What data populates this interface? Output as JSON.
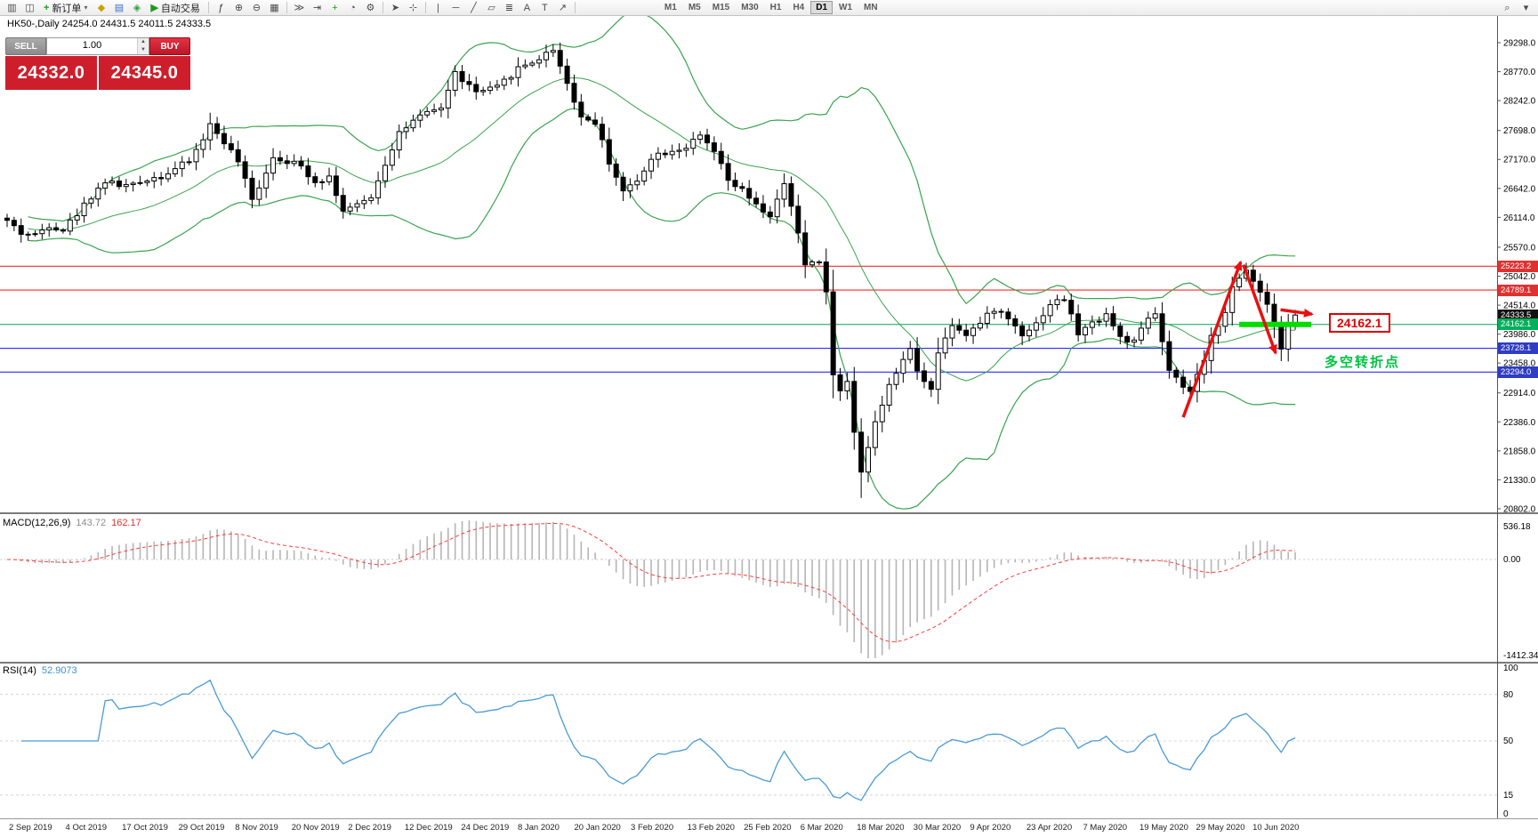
{
  "toolbar": {
    "items": [
      {
        "t": "icon",
        "name": "new-chart-icon",
        "g": "▥"
      },
      {
        "t": "icon",
        "name": "chart-windows-icon",
        "g": "◫"
      },
      {
        "t": "btn",
        "name": "new-order-button",
        "label": "新订单",
        "icon": "+",
        "icon_color": "#1a9c1a",
        "caret": true
      },
      {
        "t": "icon",
        "name": "metaeditor-icon",
        "g": "◆",
        "c": "#c9a302"
      },
      {
        "t": "icon",
        "name": "market-watch-icon",
        "g": "▤",
        "c": "#3b6fc4"
      },
      {
        "t": "icon",
        "name": "navigator-icon",
        "g": "◈",
        "c": "#2f9e44"
      },
      {
        "t": "btn",
        "name": "autotrade-button",
        "label": "自动交易",
        "icon": "▶",
        "icon_color": "#1a9c1a",
        "caret": false
      },
      {
        "t": "sep"
      },
      {
        "t": "icon",
        "name": "indicators-icon",
        "g": "ƒ",
        "c": "#333333"
      },
      {
        "t": "icon",
        "name": "zoom-in-icon",
        "g": "⊕"
      },
      {
        "t": "icon",
        "name": "zoom-out-icon",
        "g": "⊖"
      },
      {
        "t": "icon",
        "name": "tile-windows-icon",
        "g": "▦"
      },
      {
        "t": "sep"
      },
      {
        "t": "icon",
        "name": "auto-scroll-icon",
        "g": "≫"
      },
      {
        "t": "icon",
        "name": "chart-shift-icon",
        "g": "⇥"
      },
      {
        "t": "icon",
        "name": "new-object-icon",
        "g": "+",
        "c": "#1a9c1a"
      },
      {
        "t": "icon",
        "name": "period-dropdown-icon",
        "g": "◔"
      },
      {
        "t": "icon",
        "name": "templates-icon",
        "g": "⚙"
      },
      {
        "t": "sep"
      },
      {
        "t": "icon",
        "name": "cursor-icon",
        "g": "➤"
      },
      {
        "t": "icon",
        "name": "crosshair-icon",
        "g": "⊹"
      },
      {
        "t": "sep"
      },
      {
        "t": "icon",
        "name": "vertical-line-icon",
        "g": "|"
      },
      {
        "t": "icon",
        "name": "horizontal-line-icon",
        "g": "─"
      },
      {
        "t": "icon",
        "name": "trendline-icon",
        "g": "╱"
      },
      {
        "t": "icon",
        "name": "channel-icon",
        "g": "▱"
      },
      {
        "t": "icon",
        "name": "fibonacci-icon",
        "g": "≣"
      },
      {
        "t": "icon",
        "name": "text-icon",
        "g": "A"
      },
      {
        "t": "icon",
        "name": "label-icon",
        "g": "T"
      },
      {
        "t": "icon",
        "name": "arrows-icon",
        "g": "↗"
      },
      {
        "t": "sep"
      }
    ],
    "timeframes": [
      "M1",
      "M5",
      "M15",
      "M30",
      "H1",
      "H4",
      "D1",
      "W1",
      "MN"
    ],
    "active_timeframe": "D1",
    "right_icons": [
      {
        "name": "search-icon",
        "g": "⌕"
      },
      {
        "name": "objects-dropdown-icon",
        "g": "▾"
      }
    ]
  },
  "quote_panel": {
    "sell_label": "SELL",
    "buy_label": "BUY",
    "lot": "1.00",
    "sell_price": "24332.0",
    "buy_price": "24345.0"
  },
  "chart_data": {
    "type": "candlestick",
    "symbol_line": "HK50-,Daily  24254.0 24431.5 24011.5 24333.5",
    "price_axis": {
      "max": 29298.0,
      "min": 20802.0,
      "labels": [
        "29298.0",
        "28770.0",
        "28242.0",
        "27698.0",
        "27170.0",
        "26642.0",
        "26114.0",
        "25570.0",
        "25042.0",
        "24514.0",
        "23986.0",
        "23458.0",
        "22914.0",
        "22386.0",
        "21858.0",
        "21330.0",
        "20802.0"
      ]
    },
    "dates": [
      "2 Sep 2019",
      "4 Oct 2019",
      "17 Oct 2019",
      "29 Oct 2019",
      "8 Nov 2019",
      "20 Nov 2019",
      "2 Dec 2019",
      "12 Dec 2019",
      "24 Dec 2019",
      "8 Jan 2020",
      "20 Jan 2020",
      "3 Feb 2020",
      "13 Feb 2020",
      "25 Feb 2020",
      "6 Mar 2020",
      "18 Mar 2020",
      "30 Mar 2020",
      "9 Apr 2020",
      "23 Apr 2020",
      "7 May 2020",
      "19 May 2020",
      "29 May 2020",
      "10 Jun 2020"
    ],
    "bars": 185,
    "last_close": 24333.5,
    "close_anchors": [
      [
        0,
        26060
      ],
      [
        2,
        25830
      ],
      [
        4,
        25790
      ],
      [
        6,
        25980
      ],
      [
        8,
        25890
      ],
      [
        10,
        26180
      ],
      [
        12,
        26500
      ],
      [
        14,
        26775
      ],
      [
        16,
        26700
      ],
      [
        18,
        26690
      ],
      [
        20,
        26820
      ],
      [
        22,
        26865
      ],
      [
        24,
        27000
      ],
      [
        26,
        27135
      ],
      [
        28,
        27550
      ],
      [
        29,
        27800
      ],
      [
        31,
        27500
      ],
      [
        33,
        27130
      ],
      [
        35,
        26420
      ],
      [
        38,
        27220
      ],
      [
        40,
        27150
      ],
      [
        42,
        27040
      ],
      [
        44,
        26770
      ],
      [
        46,
        26860
      ],
      [
        48,
        26240
      ],
      [
        50,
        26320
      ],
      [
        52,
        26500
      ],
      [
        54,
        27100
      ],
      [
        56,
        27670
      ],
      [
        59,
        27940
      ],
      [
        62,
        28120
      ],
      [
        64,
        28745
      ],
      [
        67,
        28390
      ],
      [
        70,
        28475
      ],
      [
        73,
        28835
      ],
      [
        76,
        29010
      ],
      [
        78,
        29190
      ],
      [
        80,
        28565
      ],
      [
        82,
        27940
      ],
      [
        84,
        27850
      ],
      [
        86,
        27130
      ],
      [
        88,
        26590
      ],
      [
        90,
        26770
      ],
      [
        92,
        27220
      ],
      [
        94,
        27310
      ],
      [
        97,
        27400
      ],
      [
        99,
        27580
      ],
      [
        101,
        27310
      ],
      [
        103,
        26775
      ],
      [
        105,
        26600
      ],
      [
        107,
        26320
      ],
      [
        109,
        26150
      ],
      [
        111,
        26690
      ],
      [
        112,
        26320
      ],
      [
        114,
        25255
      ],
      [
        116,
        25345
      ],
      [
        117,
        24720
      ],
      [
        118,
        23290
      ],
      [
        119,
        22930
      ],
      [
        120,
        23110
      ],
      [
        121,
        22215
      ],
      [
        122,
        21500
      ],
      [
        124,
        22390
      ],
      [
        125,
        22660
      ],
      [
        126,
        23110
      ],
      [
        128,
        23470
      ],
      [
        129,
        23740
      ],
      [
        130,
        23290
      ],
      [
        132,
        23020
      ],
      [
        133,
        23650
      ],
      [
        135,
        24180
      ],
      [
        137,
        24000
      ],
      [
        139,
        24180
      ],
      [
        141,
        24450
      ],
      [
        143,
        24270
      ],
      [
        145,
        24000
      ],
      [
        147,
        24180
      ],
      [
        149,
        24540
      ],
      [
        151,
        24630
      ],
      [
        153,
        24000
      ],
      [
        155,
        24180
      ],
      [
        157,
        24360
      ],
      [
        159,
        23920
      ],
      [
        161,
        23830
      ],
      [
        163,
        24270
      ],
      [
        164,
        24360
      ],
      [
        166,
        23290
      ],
      [
        168,
        23020
      ],
      [
        169,
        22930
      ],
      [
        171,
        23470
      ],
      [
        172,
        24000
      ],
      [
        174,
        24360
      ],
      [
        175,
        24810
      ],
      [
        177,
        25165
      ],
      [
        178,
        24990
      ],
      [
        180,
        24540
      ],
      [
        181,
        24180
      ],
      [
        182,
        23740
      ],
      [
        183,
        24180
      ],
      [
        184,
        24333.5
      ]
    ],
    "extremes": {
      "highs": {
        "78": 29270
      },
      "lows": {
        "122": 21000
      }
    },
    "bollinger": {
      "period": 20,
      "deviation": 2,
      "color": "#3aa34f"
    },
    "candle_colors": {
      "bull": "#ffffff",
      "bear": "#000000",
      "outline": "#000000"
    },
    "levels": [
      {
        "value": 25223.2,
        "label": "25223.2",
        "line_color": "#ff2a2a",
        "tag_bg": "#e03131"
      },
      {
        "value": 24789.1,
        "label": "24789.1",
        "line_color": "#ff2a2a",
        "tag_bg": "#e03131"
      },
      {
        "value": 24333.5,
        "label": "24333.5",
        "line_color": null,
        "tag_bg": "#111111"
      },
      {
        "value": 24162.1,
        "label": "24162.1",
        "line_color": "#00a651",
        "tag_bg": "#00b05a"
      },
      {
        "value": 23728.1,
        "label": "23728.1",
        "line_color": "#2b2bff",
        "tag_bg": "#2f3cc3"
      },
      {
        "value": 23294.0,
        "label": "23294.0",
        "line_color": "#2b2bff",
        "tag_bg": "#2f3cc3"
      }
    ],
    "macd": {
      "label": "MACD(12,26,9)",
      "main_value": "143.72",
      "signal_value": "162.17",
      "axis_labels": [
        "536.18",
        "0.00",
        "-1412.34"
      ],
      "histogram_color": "#b5b5b5",
      "signal_color": "#ff3b3b"
    },
    "rsi": {
      "label": "RSI(14)",
      "value": "52.9073",
      "axis_labels": [
        100,
        80,
        50,
        15,
        0
      ],
      "levels": [
        80,
        50,
        15
      ],
      "line_color": "#4a9ad4"
    },
    "annotations": {
      "support_segment": {
        "value": 24162.1,
        "from_bar": 176,
        "to_bar": 186.3,
        "color": "#00dd00"
      },
      "price_label": {
        "text": "24162.1"
      },
      "note": {
        "text": "多空转折点"
      },
      "arrow_color": "#e81010",
      "arrows": [
        {
          "from": [
            168,
            22470
          ],
          "to": [
            176.2,
            25300
          ]
        },
        {
          "from": [
            176.6,
            25250
          ],
          "to": [
            181.2,
            23640
          ]
        },
        {
          "from": [
            181.9,
            24430
          ],
          "to": [
            186.4,
            24350
          ]
        }
      ]
    }
  }
}
